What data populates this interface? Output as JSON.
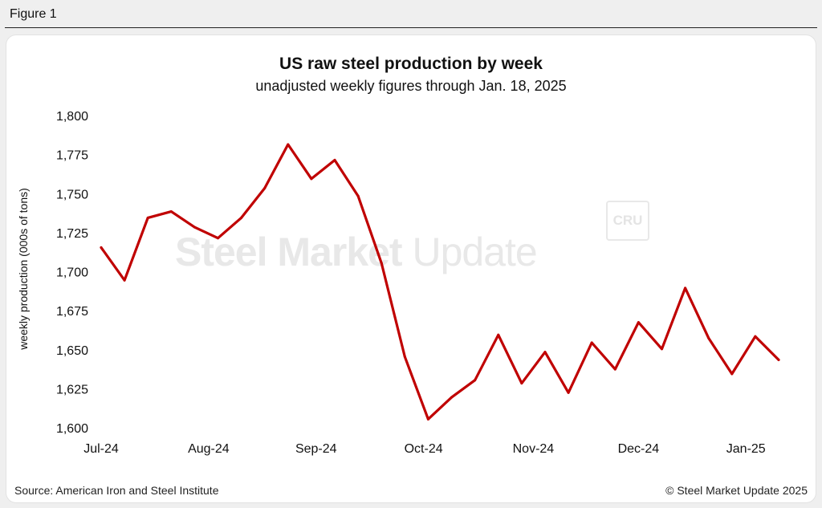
{
  "figure_label": "Figure 1",
  "source": "Source: American Iron and Steel Institute",
  "copyright": "© Steel Market Update 2025",
  "watermark": {
    "brand_bold": "Steel Market",
    "brand_light": " Update",
    "badge": "CRU"
  },
  "colors": {
    "line": "#c00000",
    "axis_text": "#111111",
    "watermark": "#e8e8e8"
  },
  "chart_data": {
    "type": "line",
    "title": "US raw steel production by week",
    "subtitle": "unadjusted weekly figures through Jan. 18, 2025",
    "xlabel": "",
    "ylabel": "weekly production (000s of tons)",
    "ylim": [
      1600,
      1800
    ],
    "yticks": [
      1600,
      1625,
      1650,
      1675,
      1700,
      1725,
      1750,
      1775,
      1800
    ],
    "ytick_labels": [
      "1,600",
      "1,625",
      "1,650",
      "1,675",
      "1,700",
      "1,725",
      "1,750",
      "1,775",
      "1,800"
    ],
    "grid": false,
    "x_month_labels": [
      {
        "label": "Jul-24",
        "week_index": 0
      },
      {
        "label": "Aug-24",
        "week_index": 4.6
      },
      {
        "label": "Sep-24",
        "week_index": 9.2
      },
      {
        "label": "Oct-24",
        "week_index": 13.8
      },
      {
        "label": "Nov-24",
        "week_index": 18.5
      },
      {
        "label": "Dec-24",
        "week_index": 23.0
      },
      {
        "label": "Jan-25",
        "week_index": 27.6
      }
    ],
    "series": [
      {
        "name": "US raw steel production",
        "values": [
          1716,
          1695,
          1735,
          1739,
          1729,
          1722,
          1735,
          1754,
          1782,
          1760,
          1772,
          1749,
          1706,
          1646,
          1606,
          1620,
          1631,
          1660,
          1629,
          1649,
          1623,
          1655,
          1638,
          1668,
          1651,
          1690,
          1658,
          1635,
          1659,
          1644
        ]
      }
    ]
  }
}
